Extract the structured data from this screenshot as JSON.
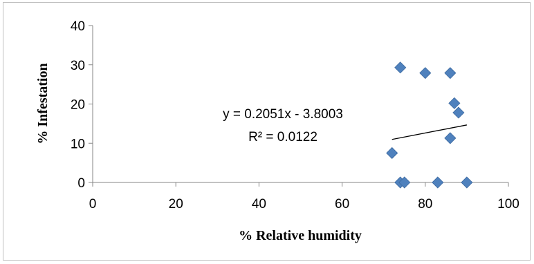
{
  "chart_data": {
    "type": "scatter",
    "title": "",
    "xlabel": "% Relative humidity",
    "ylabel": "% Infestation",
    "xlim": [
      0,
      100
    ],
    "ylim": [
      0,
      40
    ],
    "xticks": [
      "0",
      "20",
      "40",
      "60",
      "80",
      "100"
    ],
    "yticks": [
      "0",
      "10",
      "20",
      "30",
      "40"
    ],
    "grid": false,
    "legend": "none",
    "marker_color": "#4f81bd",
    "series": [
      {
        "points": [
          {
            "x": 72,
            "y": 7.5
          },
          {
            "x": 74,
            "y": 0
          },
          {
            "x": 74,
            "y": 29.3
          },
          {
            "x": 75,
            "y": 0
          },
          {
            "x": 80,
            "y": 27.9
          },
          {
            "x": 83,
            "y": 0
          },
          {
            "x": 86,
            "y": 27.9
          },
          {
            "x": 86,
            "y": 11.3
          },
          {
            "x": 87,
            "y": 20.2
          },
          {
            "x": 88,
            "y": 17.8
          },
          {
            "x": 90,
            "y": 0
          }
        ]
      }
    ],
    "trendline": {
      "slope": 0.2051,
      "intercept": -3.8003,
      "x_range": [
        72,
        90
      ],
      "equation": "y = 0.2051x - 3.8003",
      "r_squared": "R² = 0.0122",
      "color": "#000000"
    }
  }
}
